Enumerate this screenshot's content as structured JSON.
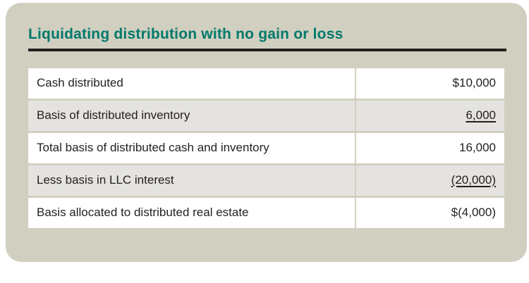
{
  "title": "Liquidating distribution with no gain or loss",
  "colors": {
    "card_background": "#d1cfc0",
    "title_teal": "#00796b",
    "rule_dark": "#231f20",
    "row_alt_gray": "#e4e3e0",
    "row_white": "#ffffff",
    "text": "#231f20"
  },
  "table": {
    "rows": [
      {
        "label": "Cash distributed",
        "value": "$10,000",
        "underline": false
      },
      {
        "label": "Basis of distributed inventory",
        "value": "6,000",
        "underline": true
      },
      {
        "label": "Total basis of distributed cash and inventory",
        "value": "16,000",
        "underline": false
      },
      {
        "label": "Less basis in LLC interest",
        "value": "(20,000)",
        "underline": true
      },
      {
        "label": "Basis allocated to distributed real estate",
        "value": "$(4,000)",
        "underline": false
      }
    ]
  }
}
